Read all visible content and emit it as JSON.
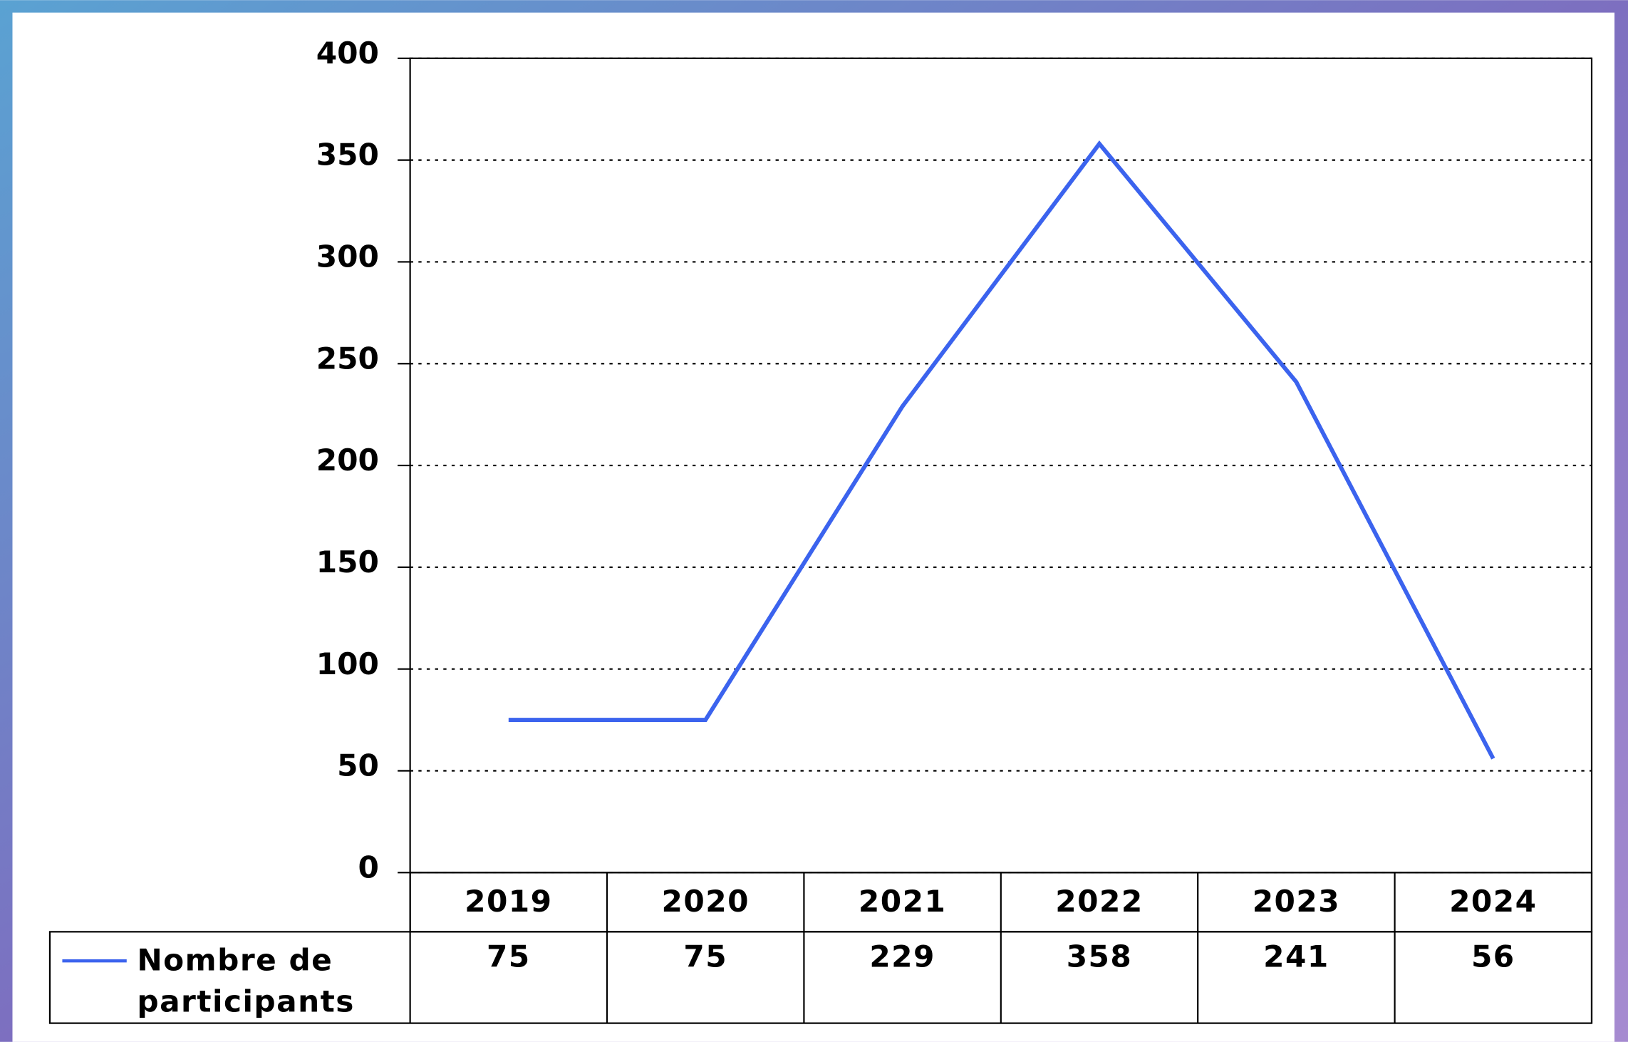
{
  "chart_data": {
    "type": "line",
    "categories": [
      "2019",
      "2020",
      "2021",
      "2022",
      "2023",
      "2024"
    ],
    "series": [
      {
        "name": "Nombre de participants",
        "color": "#3b63ee",
        "values": [
          75,
          75,
          229,
          358,
          241,
          56
        ]
      }
    ],
    "ylim": [
      0,
      400
    ],
    "yticks": [
      0,
      50,
      100,
      150,
      200,
      250,
      300,
      350,
      400
    ],
    "grid": true
  }
}
